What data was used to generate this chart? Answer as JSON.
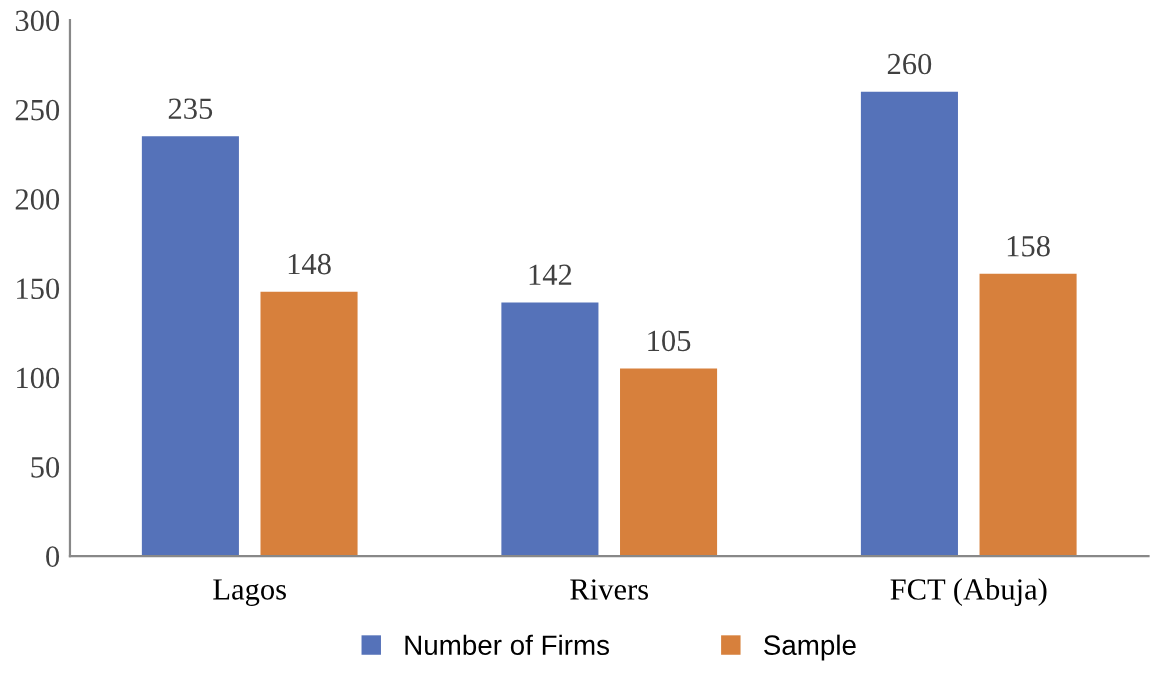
{
  "chart_data": {
    "type": "bar",
    "categories": [
      "Lagos",
      "Rivers",
      "FCT (Abuja)"
    ],
    "series": [
      {
        "name": "Number of Firms",
        "color": "#5572b9",
        "values": [
          235,
          142,
          260
        ]
      },
      {
        "name": "Sample",
        "color": "#d7803c",
        "values": [
          148,
          105,
          158
        ]
      }
    ],
    "ylim": [
      0,
      300
    ],
    "yticks": [
      0,
      50,
      100,
      150,
      200,
      250,
      300
    ],
    "data_labels": true,
    "legend": "bottom",
    "grid": false
  }
}
